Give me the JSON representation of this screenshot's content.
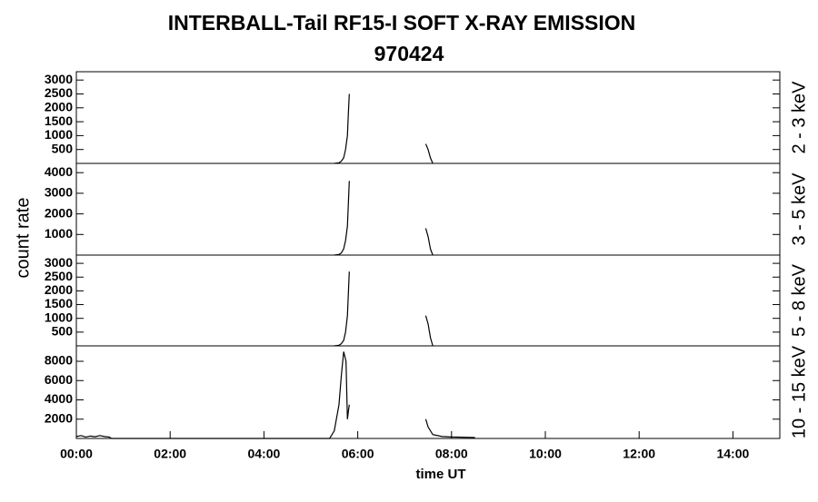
{
  "title": "INTERBALL-Tail RF15-I SOFT X-RAY EMISSION",
  "subtitle": "970424",
  "y_label": "count rate",
  "chart_data": [
    {
      "type": "line",
      "panel_label": "2 - 3 keV",
      "color": "#000000",
      "xlim": [
        0,
        15
      ],
      "ylim": [
        0,
        3300
      ],
      "yticks": [
        500,
        1000,
        1500,
        2000,
        2500,
        3000
      ],
      "x": [
        5.5,
        5.6,
        5.65,
        5.7,
        5.74,
        5.78,
        5.8,
        5.82,
        6.5,
        7.45,
        7.5,
        7.55,
        7.6
      ],
      "values": [
        0,
        20,
        80,
        200,
        500,
        1000,
        1800,
        2500,
        null,
        700,
        500,
        200,
        0
      ]
    },
    {
      "type": "line",
      "panel_label": "3 - 5 keV",
      "color": "#000000",
      "xlim": [
        0,
        15
      ],
      "ylim": [
        0,
        4450
      ],
      "yticks": [
        1000,
        2000,
        3000,
        4000
      ],
      "x": [
        5.5,
        5.6,
        5.65,
        5.7,
        5.74,
        5.78,
        5.8,
        5.82,
        6.5,
        7.45,
        7.5,
        7.55,
        7.6
      ],
      "values": [
        0,
        30,
        100,
        300,
        700,
        1400,
        2500,
        3600,
        null,
        1300,
        900,
        300,
        0
      ]
    },
    {
      "type": "line",
      "panel_label": "5 - 8 keV",
      "color": "#000000",
      "xlim": [
        0,
        15
      ],
      "ylim": [
        0,
        3300
      ],
      "yticks": [
        500,
        1000,
        1500,
        2000,
        2500,
        3000
      ],
      "x": [
        5.5,
        5.6,
        5.65,
        5.7,
        5.74,
        5.78,
        5.8,
        5.82,
        6.5,
        7.45,
        7.5,
        7.55,
        7.6
      ],
      "values": [
        0,
        20,
        80,
        200,
        500,
        1100,
        1900,
        2700,
        null,
        1100,
        800,
        300,
        0
      ]
    },
    {
      "type": "line",
      "panel_label": "10 - 15 keV",
      "color": "#000000",
      "xlim": [
        0,
        15
      ],
      "ylim": [
        0,
        9600
      ],
      "yticks": [
        2000,
        4000,
        6000,
        8000
      ],
      "x_label": "time UT",
      "xticks": [
        {
          "value": 0,
          "label": "00:00"
        },
        {
          "value": 2,
          "label": "02:00"
        },
        {
          "value": 4,
          "label": "04:00"
        },
        {
          "value": 6,
          "label": "06:00"
        },
        {
          "value": 8,
          "label": "08:00"
        },
        {
          "value": 10,
          "label": "10:00"
        },
        {
          "value": 12,
          "label": "12:00"
        },
        {
          "value": 14,
          "label": "14:00"
        }
      ],
      "x": [
        0,
        0.1,
        0.2,
        0.3,
        0.4,
        0.5,
        0.6,
        0.7,
        0.75,
        5.4,
        5.5,
        5.6,
        5.65,
        5.7,
        5.75,
        5.78,
        5.8,
        5.82,
        6.5,
        7.45,
        7.5,
        7.55,
        7.6,
        7.8,
        8.0,
        8.5
      ],
      "values": [
        200,
        300,
        150,
        250,
        180,
        300,
        200,
        150,
        0,
        0,
        800,
        3500,
        6500,
        9000,
        8000,
        2000,
        2800,
        3500,
        null,
        2000,
        1200,
        800,
        400,
        200,
        150,
        100
      ]
    }
  ]
}
